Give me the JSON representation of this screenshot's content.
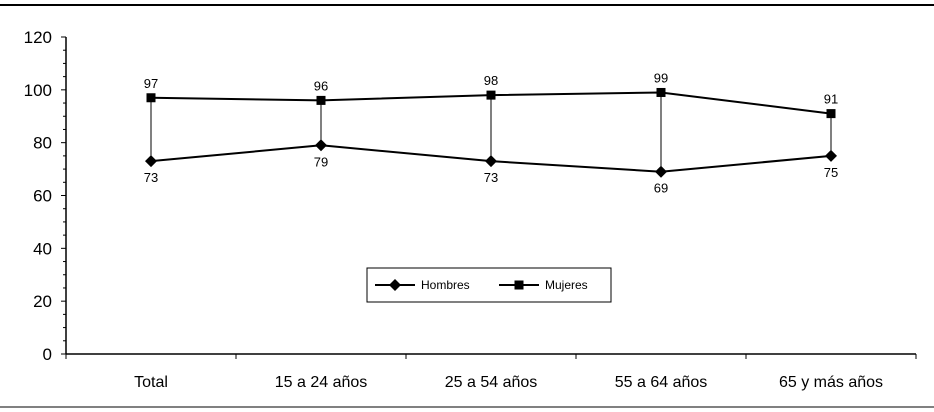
{
  "chart_data": {
    "type": "line",
    "categories": [
      "Total",
      "15 a 24 años",
      "25 a 54 años",
      "55 a 64 años",
      "65 y más años"
    ],
    "series": [
      {
        "name": "Hombres",
        "values": [
          73,
          79,
          73,
          69,
          75
        ],
        "marker": "diamond"
      },
      {
        "name": "Mujeres",
        "values": [
          97,
          96,
          98,
          99,
          91
        ],
        "marker": "square"
      }
    ],
    "ylim": [
      0,
      120
    ],
    "yticks": [
      0,
      20,
      40,
      60,
      80,
      100,
      120
    ],
    "legend_position": "center",
    "grid": false,
    "high_low_lines": true
  }
}
